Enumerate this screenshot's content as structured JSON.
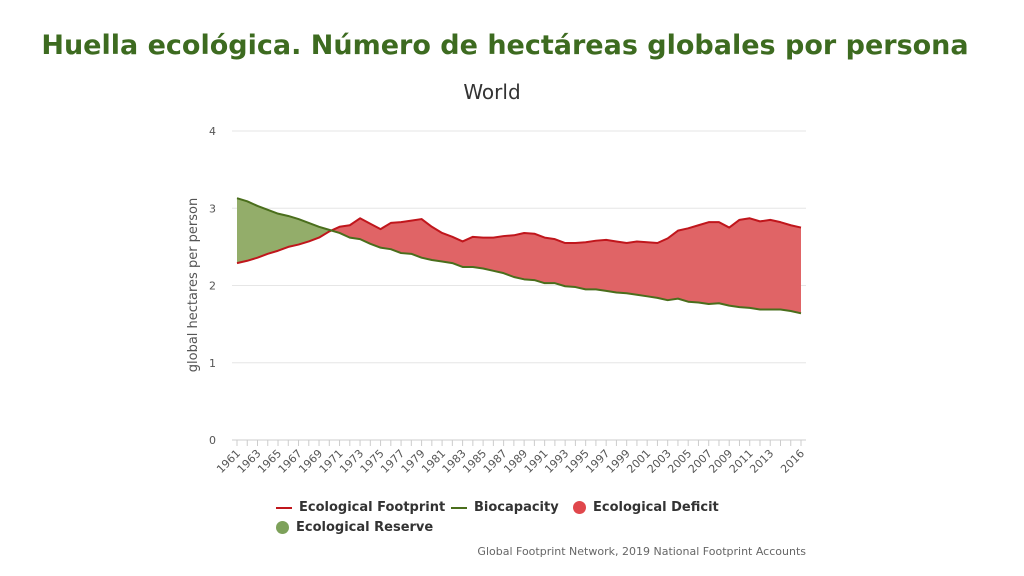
{
  "slide_title": "Huella ecológica. Número de hectáreas globales por persona",
  "credit": "Global Footprint Network, 2019 National Footprint Accounts",
  "colors": {
    "footprint": "#c0161c",
    "biocapacity": "#4a6e1c",
    "deficit": "#e06466",
    "reserve": "#93ad6a"
  },
  "chart_data": {
    "type": "area",
    "title": "World",
    "xlabel": "",
    "ylabel": "global hectares per person",
    "ylim": [
      0,
      4
    ],
    "yticks": [
      "0",
      "1",
      "2",
      "3",
      "4"
    ],
    "grid": true,
    "legend_position": "bottom",
    "x": [
      1961,
      1962,
      1963,
      1964,
      1965,
      1966,
      1967,
      1968,
      1969,
      1970,
      1971,
      1972,
      1973,
      1974,
      1975,
      1976,
      1977,
      1978,
      1979,
      1980,
      1981,
      1982,
      1983,
      1984,
      1985,
      1986,
      1987,
      1988,
      1989,
      1990,
      1991,
      1992,
      1993,
      1994,
      1995,
      1996,
      1997,
      1998,
      1999,
      2000,
      2001,
      2002,
      2003,
      2004,
      2005,
      2006,
      2007,
      2008,
      2009,
      2010,
      2011,
      2012,
      2013,
      2014,
      2015,
      2016
    ],
    "xtick_labels": [
      "1961",
      "1963",
      "1965",
      "1967",
      "1969",
      "1971",
      "1973",
      "1975",
      "1977",
      "1979",
      "1981",
      "1983",
      "1985",
      "1987",
      "1989",
      "1991",
      "1993",
      "1995",
      "1997",
      "1999",
      "2001",
      "2003",
      "2005",
      "2007",
      "2009",
      "2011",
      "2013",
      "2016"
    ],
    "series": [
      {
        "name": "Ecological Footprint",
        "values": [
          2.29,
          2.32,
          2.36,
          2.41,
          2.45,
          2.5,
          2.53,
          2.57,
          2.62,
          2.7,
          2.76,
          2.78,
          2.87,
          2.8,
          2.73,
          2.81,
          2.82,
          2.84,
          2.86,
          2.76,
          2.68,
          2.63,
          2.57,
          2.63,
          2.62,
          2.62,
          2.64,
          2.65,
          2.68,
          2.67,
          2.62,
          2.6,
          2.55,
          2.55,
          2.56,
          2.58,
          2.59,
          2.57,
          2.55,
          2.57,
          2.56,
          2.55,
          2.61,
          2.71,
          2.74,
          2.78,
          2.82,
          2.82,
          2.75,
          2.85,
          2.87,
          2.83,
          2.85,
          2.82,
          2.78,
          2.75
        ]
      },
      {
        "name": "Biocapacity",
        "values": [
          3.13,
          3.09,
          3.03,
          2.98,
          2.93,
          2.9,
          2.86,
          2.81,
          2.76,
          2.72,
          2.68,
          2.62,
          2.6,
          2.54,
          2.49,
          2.47,
          2.42,
          2.41,
          2.36,
          2.33,
          2.31,
          2.29,
          2.24,
          2.24,
          2.22,
          2.19,
          2.16,
          2.11,
          2.08,
          2.07,
          2.03,
          2.03,
          1.99,
          1.98,
          1.95,
          1.95,
          1.93,
          1.91,
          1.9,
          1.88,
          1.86,
          1.84,
          1.81,
          1.83,
          1.79,
          1.78,
          1.76,
          1.77,
          1.74,
          1.72,
          1.71,
          1.69,
          1.69,
          1.69,
          1.67,
          1.64
        ]
      }
    ],
    "legend": [
      {
        "name": "Ecological Footprint",
        "kind": "line",
        "color": "#c0161c"
      },
      {
        "name": "Biocapacity",
        "kind": "line",
        "color": "#4a6e1c"
      },
      {
        "name": "Ecological Deficit",
        "kind": "dot",
        "color": "#e0474c"
      },
      {
        "name": "Ecological Reserve",
        "kind": "dot",
        "color": "#7da15a"
      }
    ]
  }
}
